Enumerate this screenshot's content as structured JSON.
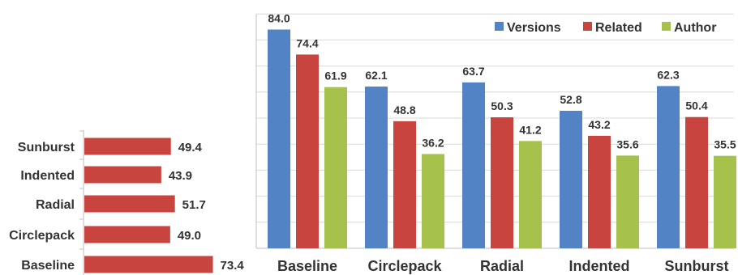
{
  "chart_data": [
    {
      "type": "bar",
      "orientation": "horizontal",
      "categories": [
        "Sunburst",
        "Indented",
        "Radial",
        "Circlepack",
        "Baseline"
      ],
      "values": [
        49.4,
        43.9,
        51.7,
        49.0,
        73.4
      ],
      "value_labels": [
        "49.4",
        "43.9",
        "51.7",
        "49.0",
        "73.4"
      ],
      "xlim": [
        0,
        100
      ],
      "grid": false,
      "colors": {
        "bar": "#c8443f"
      }
    },
    {
      "type": "bar",
      "orientation": "vertical",
      "categories": [
        "Baseline",
        "Circlepack",
        "Radial",
        "Indented",
        "Sunburst"
      ],
      "series": [
        {
          "name": "Versions",
          "values": [
            84.0,
            62.1,
            63.7,
            52.8,
            62.3
          ],
          "labels": [
            "84.0",
            "62.1",
            "63.7",
            "52.8",
            "62.3"
          ],
          "color": "#5283c4"
        },
        {
          "name": "Related",
          "values": [
            74.4,
            48.8,
            50.3,
            43.2,
            50.4
          ],
          "labels": [
            "74.4",
            "48.8",
            "50.3",
            "43.2",
            "50.4"
          ],
          "color": "#c8443f"
        },
        {
          "name": "Author",
          "values": [
            61.9,
            36.2,
            41.2,
            35.6,
            35.5
          ],
          "labels": [
            "61.9",
            "36.2",
            "41.2",
            "35.6",
            "35.5"
          ],
          "color": "#a6c24d"
        }
      ],
      "ylim": [
        0,
        90
      ],
      "grid": true,
      "legend": "top-right",
      "colors": {
        "grid": "#d9d9d9",
        "axis": "#bfbfbf"
      }
    }
  ]
}
